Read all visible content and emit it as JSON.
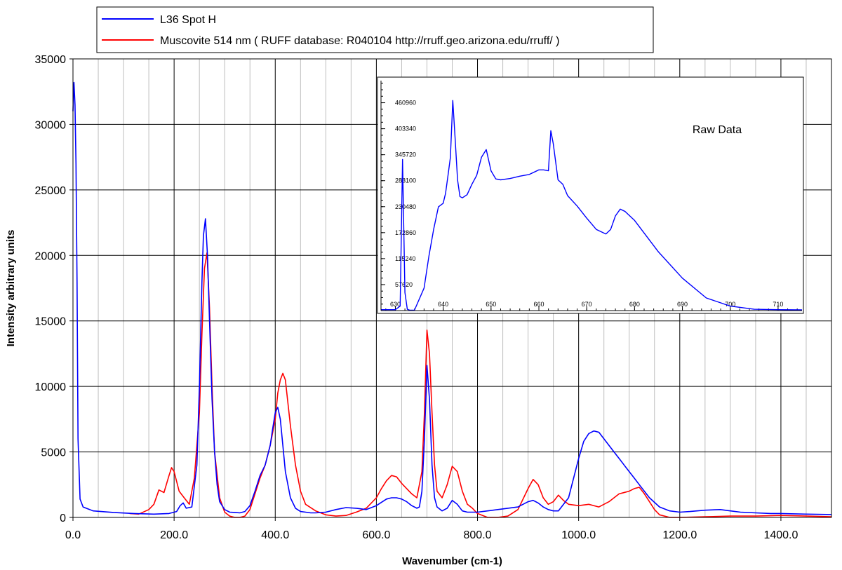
{
  "chart_data": [
    {
      "type": "line",
      "title": "",
      "xlabel": "Wavenumber (cm-1)",
      "ylabel": "Intensity arbitrary units",
      "xlim": [
        0,
        1500
      ],
      "ylim": [
        0,
        35000
      ],
      "grid": true,
      "legend_position": "top-left",
      "x_ticks": [
        0,
        200,
        400,
        600,
        800,
        1000,
        1200,
        1400
      ],
      "x_tick_labels": [
        "0.0",
        "200.0",
        "400.0",
        "600.0",
        "800.0",
        "1000.0",
        "1200.0",
        "1400.0"
      ],
      "y_ticks": [
        0,
        5000,
        10000,
        15000,
        20000,
        25000,
        30000,
        35000
      ],
      "y_tick_labels": [
        "0",
        "5000",
        "10000",
        "15000",
        "20000",
        "25000",
        "30000",
        "35000"
      ],
      "series": [
        {
          "name": "L36 Spot H",
          "color": "#0000ff",
          "x": [
            0,
            2,
            4,
            6,
            8,
            10,
            14,
            20,
            40,
            80,
            120,
            160,
            190,
            205,
            212,
            218,
            224,
            235,
            245,
            250,
            255,
            258,
            262,
            266,
            270,
            275,
            280,
            285,
            290,
            300,
            310,
            320,
            330,
            340,
            350,
            360,
            370,
            380,
            390,
            395,
            400,
            405,
            410,
            415,
            420,
            430,
            440,
            450,
            460,
            470,
            480,
            500,
            520,
            540,
            560,
            580,
            600,
            620,
            630,
            640,
            650,
            660,
            670,
            680,
            685,
            690,
            695,
            700,
            705,
            710,
            715,
            720,
            730,
            740,
            750,
            760,
            770,
            780,
            800,
            820,
            840,
            860,
            880,
            900,
            910,
            920,
            930,
            940,
            950,
            960,
            980,
            990,
            1000,
            1010,
            1020,
            1030,
            1040,
            1050,
            1060,
            1070,
            1080,
            1090,
            1100,
            1110,
            1120,
            1140,
            1160,
            1180,
            1200,
            1220,
            1250,
            1280,
            1300,
            1320,
            1350,
            1380,
            1400,
            1420,
            1450,
            1480,
            1500
          ],
          "values": [
            31000,
            33200,
            31500,
            27000,
            18000,
            6000,
            1400,
            800,
            500,
            380,
            300,
            250,
            300,
            450,
            900,
            1100,
            700,
            800,
            4000,
            10000,
            18000,
            21500,
            22800,
            20000,
            15000,
            9000,
            5000,
            2500,
            1200,
            600,
            400,
            380,
            350,
            450,
            900,
            2000,
            3200,
            4000,
            5500,
            6800,
            8000,
            8400,
            7500,
            5500,
            3500,
            1500,
            700,
            450,
            400,
            350,
            350,
            400,
            600,
            750,
            700,
            600,
            900,
            1400,
            1500,
            1500,
            1400,
            1200,
            900,
            700,
            800,
            2000,
            6000,
            11600,
            9000,
            4000,
            1500,
            800,
            500,
            700,
            1300,
            1000,
            500,
            400,
            400,
            500,
            600,
            700,
            800,
            1200,
            1300,
            1100,
            800,
            600,
            500,
            500,
            1500,
            3000,
            4500,
            5800,
            6400,
            6600,
            6500,
            6000,
            5500,
            5000,
            4500,
            4000,
            3500,
            3000,
            2500,
            1500,
            800,
            500,
            400,
            450,
            550,
            600,
            500,
            400,
            350,
            300,
            300,
            280,
            250,
            230,
            220
          ]
        },
        {
          "name": "Muscovite 514 nm ( RUFF database: R040104  http://rruff.geo.arizona.edu/rruff/ )",
          "color": "#ff0000",
          "x": [
            112,
            130,
            150,
            160,
            170,
            180,
            190,
            195,
            200,
            210,
            220,
            230,
            240,
            250,
            255,
            260,
            265,
            270,
            275,
            280,
            290,
            300,
            310,
            320,
            330,
            340,
            350,
            360,
            370,
            380,
            390,
            400,
            405,
            410,
            415,
            420,
            430,
            440,
            450,
            460,
            480,
            500,
            520,
            540,
            560,
            580,
            600,
            610,
            620,
            630,
            640,
            650,
            660,
            670,
            680,
            690,
            695,
            700,
            705,
            710,
            715,
            720,
            730,
            740,
            750,
            760,
            770,
            780,
            790,
            800,
            820,
            840,
            860,
            880,
            900,
            910,
            920,
            930,
            940,
            950,
            960,
            970,
            980,
            1000,
            1020,
            1040,
            1060,
            1080,
            1100,
            1110,
            1120,
            1130,
            1140,
            1150,
            1160,
            1180,
            1200,
            1250,
            1300,
            1350,
            1400,
            1450,
            1500
          ],
          "values": [
            300,
            250,
            600,
            1000,
            2100,
            1900,
            3200,
            3800,
            3500,
            2000,
            1500,
            1000,
            3000,
            8000,
            14000,
            19000,
            20200,
            16000,
            10000,
            5000,
            1500,
            400,
            100,
            0,
            0,
            100,
            600,
            1800,
            3000,
            4000,
            5500,
            7500,
            9500,
            10500,
            11000,
            10500,
            7000,
            4000,
            2000,
            1000,
            500,
            200,
            100,
            150,
            400,
            700,
            1500,
            2200,
            2800,
            3200,
            3100,
            2600,
            2200,
            1800,
            1500,
            3500,
            8000,
            14300,
            12500,
            8000,
            4000,
            2000,
            1500,
            2500,
            3900,
            3500,
            2000,
            1000,
            700,
            300,
            0,
            0,
            100,
            600,
            2200,
            2900,
            2500,
            1500,
            1000,
            1200,
            1700,
            1300,
            1000,
            900,
            1000,
            800,
            1200,
            1800,
            2000,
            2200,
            2300,
            1800,
            1200,
            600,
            200,
            0,
            0,
            50,
            100,
            100,
            150,
            100,
            50
          ]
        }
      ]
    },
    {
      "type": "line",
      "title": "",
      "label": "Raw Data",
      "xlim": [
        627,
        715
      ],
      "ylim": [
        0,
        510000
      ],
      "grid": false,
      "x_ticks": [
        630,
        640,
        650,
        660,
        670,
        680,
        690,
        700,
        710
      ],
      "x_tick_labels": [
        "630",
        "640",
        "650",
        "660",
        "670",
        "680",
        "690",
        "700",
        "710"
      ],
      "y_ticks": [
        57620,
        115240,
        172860,
        230480,
        288100,
        345720,
        403340,
        460960
      ],
      "y_tick_labels": [
        "57620",
        "115240",
        "172860",
        "230480",
        "288100",
        "345720",
        "403340",
        "460960"
      ],
      "series": [
        {
          "color": "#0000ff",
          "x": [
            627,
            630,
            631,
            631.5,
            632,
            632.5,
            633,
            634,
            636,
            637,
            638,
            639,
            640,
            640.5,
            641,
            641.5,
            642,
            642.5,
            643,
            643.5,
            644,
            645,
            646,
            647,
            648,
            649,
            650,
            651,
            652,
            654,
            656,
            658,
            660,
            661,
            662,
            662.5,
            663,
            664,
            665,
            666,
            668,
            670,
            672,
            674,
            675,
            676,
            677,
            678,
            680,
            685,
            690,
            695,
            700,
            705,
            710,
            715
          ],
          "values": [
            2000,
            2000,
            10000,
            335000,
            40000,
            3000,
            1000,
            1000,
            50000,
            120000,
            180000,
            230000,
            238000,
            260000,
            300000,
            340000,
            466000,
            380000,
            290000,
            253000,
            250000,
            257000,
            280000,
            300000,
            340000,
            357000,
            310000,
            292000,
            290000,
            293000,
            298000,
            302000,
            312000,
            312000,
            310000,
            399000,
            370000,
            290000,
            280000,
            255000,
            232000,
            205000,
            180000,
            170000,
            180000,
            210000,
            225000,
            220000,
            200000,
            130000,
            72000,
            28000,
            10000,
            3000,
            2000,
            1500
          ]
        }
      ]
    }
  ]
}
